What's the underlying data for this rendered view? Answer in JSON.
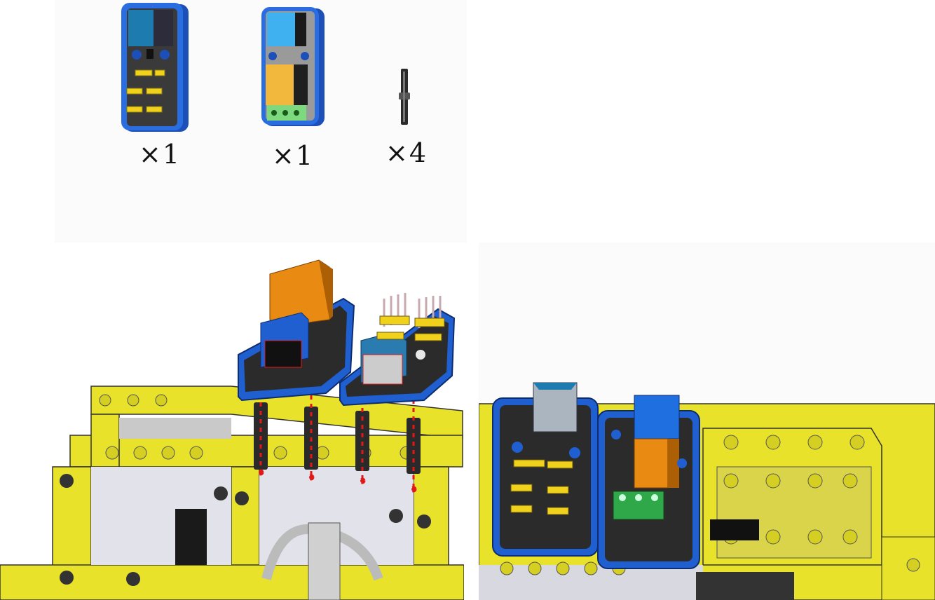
{
  "parts": [
    {
      "name": "sensor-module",
      "qty": "×1"
    },
    {
      "name": "relay-module",
      "qty": "×1"
    },
    {
      "name": "connector-pin",
      "qty": "×4"
    }
  ],
  "colors": {
    "frame_yellow": "#e8e22a",
    "module_blue": "#1f5fd0",
    "relay_orange": "#e98a12",
    "terminal_green": "#2fa84a",
    "pin_dark": "#2a2a2a",
    "arrow_red": "#e01818"
  }
}
